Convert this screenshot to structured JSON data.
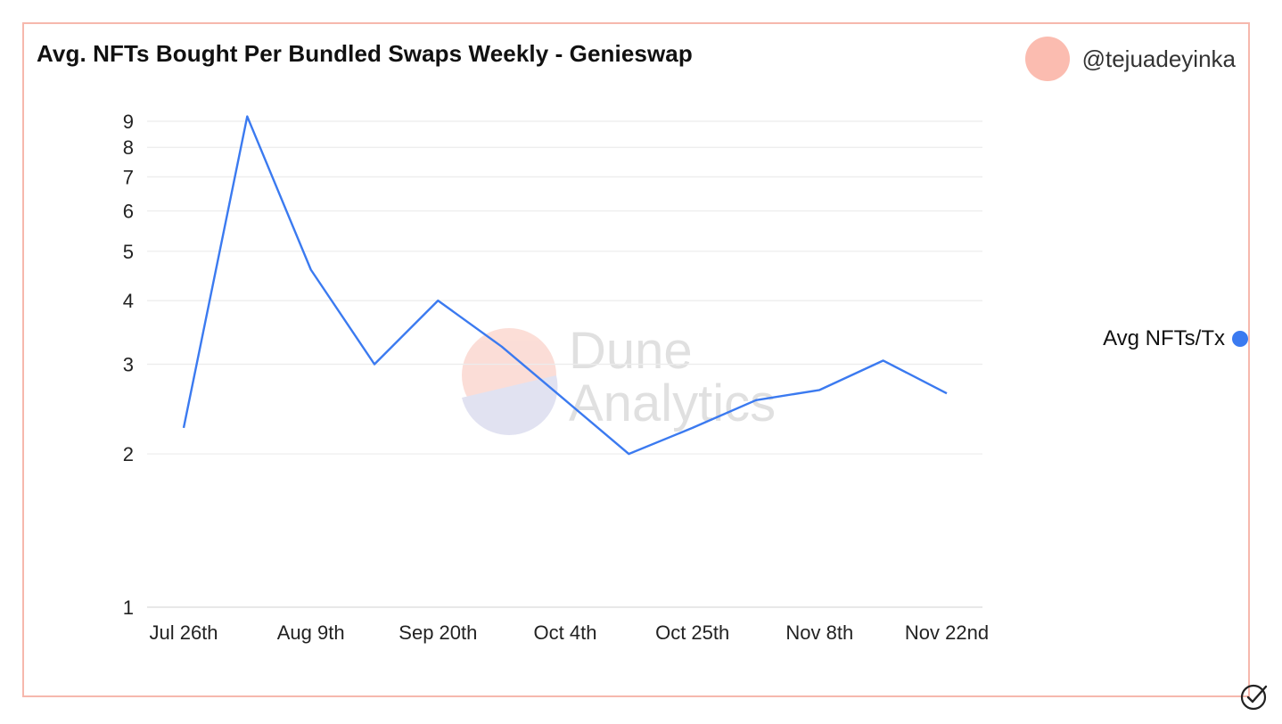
{
  "header": {
    "title": "Avg. NFTs Bought Per Bundled Swaps Weekly - Genieswap",
    "author": "@tejuadeyinka"
  },
  "watermark": {
    "line1": "Dune",
    "line2": "Analytics"
  },
  "icons": {
    "verified": "check-circle-icon"
  },
  "colors": {
    "line": "#3b7af0",
    "border": "#f6b8ad",
    "avatar": "#fbbcb0"
  },
  "chart_data": {
    "type": "line",
    "title": "Avg. NFTs Bought Per Bundled Swaps Weekly - Genieswap",
    "yscale": "log",
    "ylim": [
      1,
      9.6
    ],
    "yticks": [
      1,
      2,
      3,
      4,
      5,
      6,
      7,
      8,
      9
    ],
    "xtick_labels": [
      "Jul 26th",
      "Aug 9th",
      "Sep 20th",
      "Oct 4th",
      "Oct 25th",
      "Nov 8th",
      "Nov 22nd"
    ],
    "grid": true,
    "legend_position": "right",
    "series": [
      {
        "name": "Avg NFTs/Tx",
        "color": "#3b7af0",
        "x": [
          "Jul 26th",
          "Aug 2nd",
          "Aug 9th",
          "Aug 16th",
          "Sep 20th",
          "Sep 27th",
          "Oct 4th",
          "Oct 11th",
          "Oct 25th",
          "Nov 1st",
          "Nov 8th",
          "Nov 15th",
          "Nov 22nd"
        ],
        "values": [
          2.25,
          9.2,
          4.6,
          3.0,
          4.0,
          3.25,
          2.55,
          2.0,
          2.25,
          2.55,
          2.67,
          3.05,
          2.63
        ]
      }
    ]
  }
}
